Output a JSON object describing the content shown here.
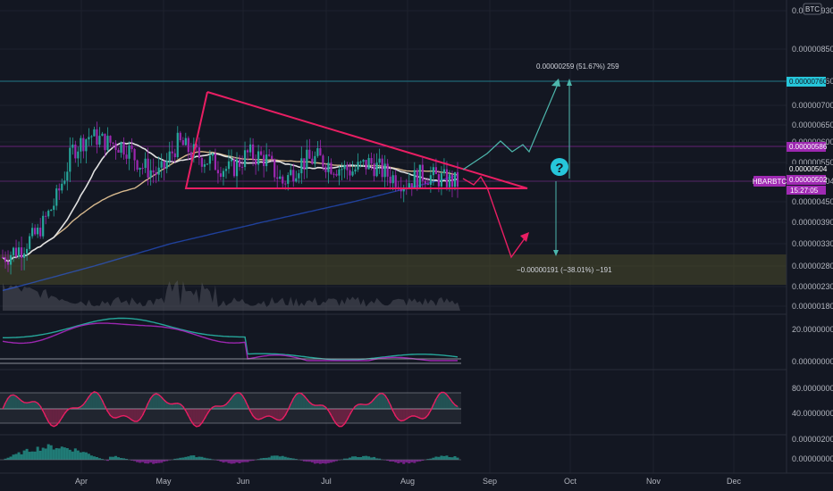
{
  "chart_data": {
    "type": "candlestick",
    "symbol_tag": "HBARBTC",
    "currency_badge": "BTC",
    "countdown": "15:27:05",
    "months": [
      "Apr",
      "May",
      "Jun",
      "Jul",
      "Aug",
      "Sep",
      "Oct",
      "Nov",
      "Dec"
    ],
    "price_ticks": [
      "0.00000930",
      "0.00000850",
      "0.00000760",
      "0.00000700",
      "0.00000650",
      "0.00000600",
      "0.00000550",
      "0.00000504",
      "0.00000450",
      "0.00000390",
      "0.00000330",
      "0.00000280",
      "0.00000230",
      "0.00000180"
    ],
    "price_tags": [
      {
        "label": "0.00000760",
        "bg": "#26c6da",
        "fg": "#131722"
      },
      {
        "label": "0.00000586",
        "bg": "#9c27b0",
        "fg": "#ffffff"
      },
      {
        "label": "0.00000504",
        "bg": "#131722",
        "fg": "#ffffff"
      },
      {
        "label": "0.00000502",
        "bg": "#a02ab3",
        "fg": "#ffffff"
      }
    ],
    "indicator_ticks": [
      "20.00000000",
      "0.00000000",
      "80.00000000",
      "40.00000000",
      "0.00000200",
      "0.00000000"
    ],
    "annotations": {
      "upper": "0.00000259 (51.67%) 259",
      "lower": "−0.00000191 (−38.01%) −191",
      "question": "?"
    },
    "trend_path": [
      3e-06,
      3.2e-06,
      3.6e-06,
      4.5e-06,
      5.8e-06,
      6.2e-06,
      6e-06,
      5.9e-06,
      5.4e-06,
      5.2e-06,
      6e-06,
      5.7e-06,
      5.5e-06,
      5.3e-06,
      5.7e-06,
      5.6e-06,
      5e-06,
      5.5e-06,
      5.6e-06,
      5.4e-06,
      5.3e-06,
      5.5e-06,
      5.2e-06,
      5e-06,
      5.2e-06,
      5.1e-06,
      5e-06
    ],
    "colors": {
      "up": "#26a69a",
      "down": "#9c27b0",
      "triangle": "#e91e63",
      "projection_up": "#4db6ac",
      "projection_down": "#e91e63",
      "ma_fast": "#e0e0e0",
      "ma_slow": "#d7b98e",
      "ma_long": "#1e4a8a",
      "zone": "#6b6b45"
    }
  }
}
